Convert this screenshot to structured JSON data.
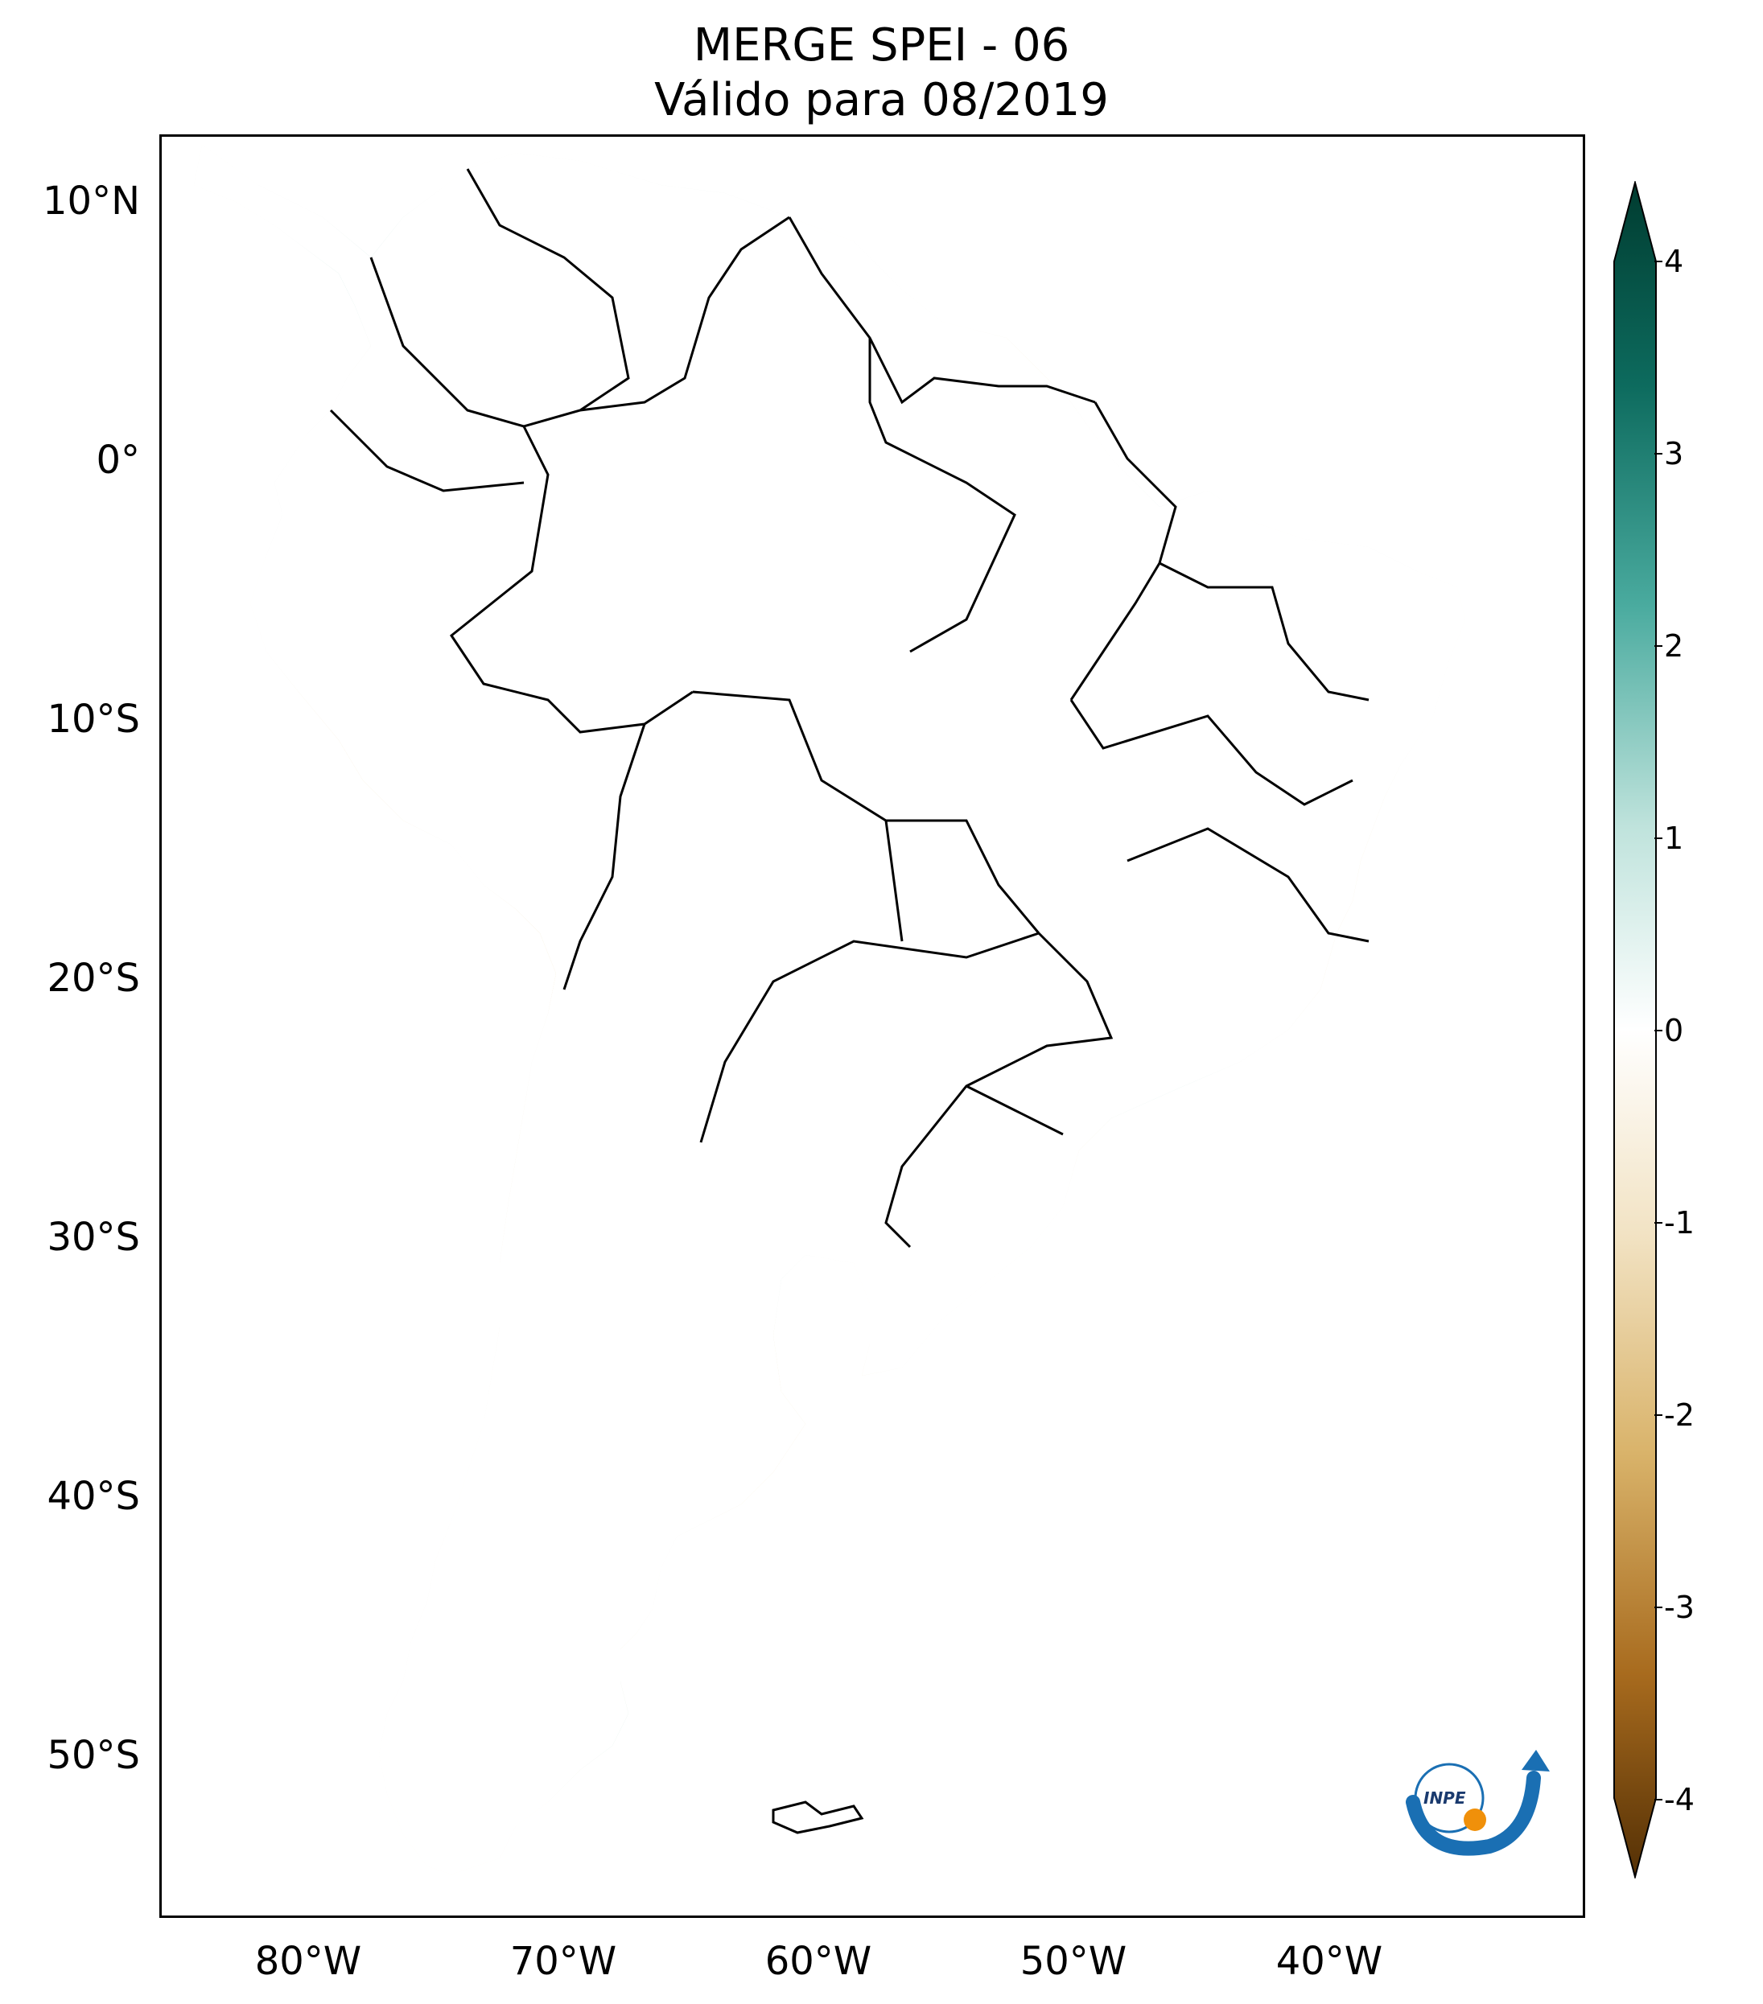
{
  "title": {
    "line1": "MERGE   SPEI - 06",
    "line2": "Válido para 08/2019"
  },
  "map": {
    "region": "South America",
    "variable": "SPEI - 06",
    "extent": {
      "lon_min": -85,
      "lon_max": -29,
      "lat_min": -56,
      "lat_max": 13
    },
    "lat_ticks": [
      {
        "value": 10,
        "label": "10°N"
      },
      {
        "value": 0,
        "label": "0°"
      },
      {
        "value": -10,
        "label": "10°S"
      },
      {
        "value": -20,
        "label": "20°S"
      },
      {
        "value": -30,
        "label": "30°S"
      },
      {
        "value": -40,
        "label": "40°S"
      },
      {
        "value": -50,
        "label": "50°S"
      }
    ],
    "lon_ticks": [
      {
        "value": -80,
        "label": "80°W"
      },
      {
        "value": -70,
        "label": "70°W"
      },
      {
        "value": -60,
        "label": "60°W"
      },
      {
        "value": -50,
        "label": "50°W"
      },
      {
        "value": -40,
        "label": "40°W"
      }
    ],
    "logo_text": "INPE",
    "colors": {
      "wet_strong": "#0d6b5e",
      "wet_mid": "#4aab9f",
      "wet_light": "#bfe3dc",
      "neutral": "#ffffff",
      "dry_light": "#f2e3c4",
      "dry_mid": "#d9b36a",
      "dry_strong": "#543005",
      "wet_max": "#003c30",
      "border": "#000000",
      "logo_blue": "#1a6fb3",
      "logo_orange": "#f0900a"
    }
  },
  "colorbar": {
    "min": -4,
    "max": 4,
    "ticks": [
      "4",
      "3",
      "2",
      "1",
      "0",
      "-1",
      "-2",
      "-3",
      "-4"
    ],
    "tick_values": [
      4,
      3,
      2,
      1,
      0,
      -1,
      -2,
      -3,
      -4
    ]
  }
}
